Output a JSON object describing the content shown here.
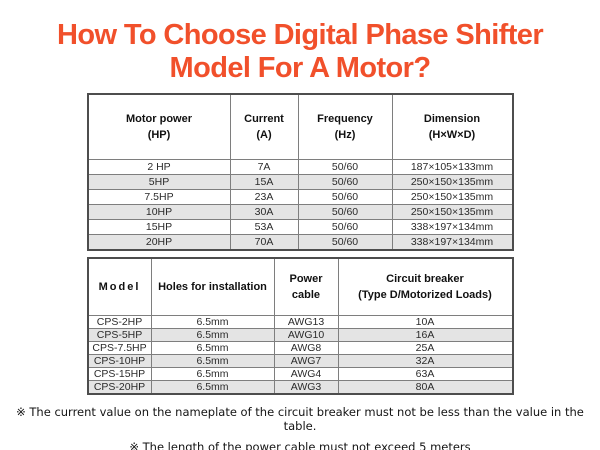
{
  "theme": {
    "title_color": "#f1502b",
    "row_alt_color": "#e4e4e4",
    "border_color": "#7e7e7e"
  },
  "header": {
    "title_line1": "How To Choose Digital Phase Shifter",
    "title_line2": "Model For A Motor?"
  },
  "motor_table": {
    "headers": [
      "Motor power\n(HP)",
      "Current\n(A)",
      "Frequency\n(Hz)",
      "Dimension\n(H×W×D)"
    ],
    "rows": [
      [
        "2 HP",
        "7A",
        "50/60",
        "187×105×133mm"
      ],
      [
        "5HP",
        "15A",
        "50/60",
        "250×150×135mm"
      ],
      [
        "7.5HP",
        "23A",
        "50/60",
        "250×150×135mm"
      ],
      [
        "10HP",
        "30A",
        "50/60",
        "250×150×135mm"
      ],
      [
        "15HP",
        "53A",
        "50/60",
        "338×197×134mm"
      ],
      [
        "20HP",
        "70A",
        "50/60",
        "338×197×134mm"
      ]
    ]
  },
  "model_table": {
    "headers": [
      "Model",
      "Holes for installation",
      "Power cable",
      "Circuit breaker\n(Type D/Motorized Loads)"
    ],
    "rows": [
      [
        "CPS-2HP",
        "6.5mm",
        "AWG13",
        "10A"
      ],
      [
        "CPS-5HP",
        "6.5mm",
        "AWG10",
        "16A"
      ],
      [
        "CPS-7.5HP",
        "6.5mm",
        "AWG8",
        "25A"
      ],
      [
        "CPS-10HP",
        "6.5mm",
        "AWG7",
        "32A"
      ],
      [
        "CPS-15HP",
        "6.5mm",
        "AWG4",
        "63A"
      ],
      [
        "CPS-20HP",
        "6.5mm",
        "AWG3",
        "80A"
      ]
    ]
  },
  "footnotes": [
    "※ The current value on the nameplate of the circuit breaker must not be less than the value in the table.",
    "※ The length of the power cable must not exceed 5 meters"
  ]
}
